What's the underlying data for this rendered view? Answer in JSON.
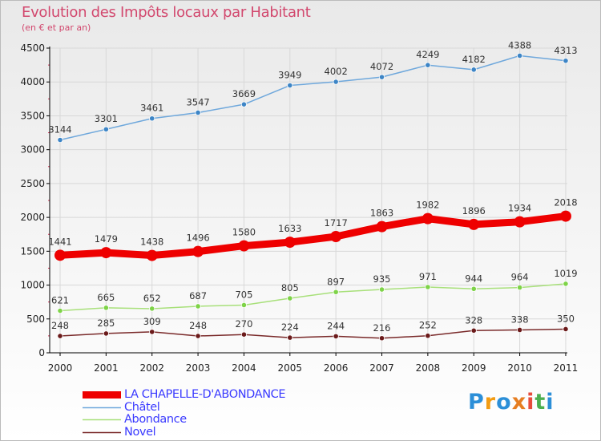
{
  "header": {
    "title": "Evolution des Impôts locaux par Habitant",
    "subtitle": "(en € et par an)"
  },
  "colors": {
    "title": "#d2486e",
    "legend_text": "#3a3aff",
    "axis": "#000000",
    "grid": "#d8d8d8",
    "tick_minor": "#cc3355"
  },
  "logo": {
    "letters": [
      "P",
      "r",
      "o",
      "x",
      "i",
      "t",
      "i"
    ],
    "colors": [
      "#2c8fd8",
      "#f39c12",
      "#2c8fd8",
      "#e67e22",
      "#e74c3c",
      "#4caf50",
      "#2c8fd8"
    ]
  },
  "chart_data": {
    "type": "line",
    "title": "Evolution des Impôts locaux par Habitant",
    "subtitle": "(en € et par an)",
    "x": [
      "2000",
      "2001",
      "2002",
      "2003",
      "2004",
      "2005",
      "2006",
      "2007",
      "2008",
      "2009",
      "2010",
      "2011"
    ],
    "ylim": [
      0,
      4500
    ],
    "yticks": [
      0,
      500,
      1000,
      1500,
      2000,
      2500,
      3000,
      3500,
      4000,
      4500
    ],
    "grid": true,
    "legend_position": "bottom-left",
    "series": [
      {
        "name": "LA CHAPELLE-D'ABONDANCE",
        "color": "#ee0000",
        "marker_color": "#ee0000",
        "emphasis": true,
        "values": [
          1441,
          1479,
          1438,
          1496,
          1580,
          1633,
          1717,
          1863,
          1982,
          1896,
          1934,
          2018
        ]
      },
      {
        "name": "Châtel",
        "color": "#6fa8dc",
        "marker_color": "#3d85c6",
        "emphasis": false,
        "values": [
          3144,
          3301,
          3461,
          3547,
          3669,
          3949,
          4002,
          4072,
          4249,
          4182,
          4388,
          4313
        ]
      },
      {
        "name": "Abondance",
        "color": "#a8e07a",
        "marker_color": "#7ed348",
        "emphasis": false,
        "values": [
          621,
          665,
          652,
          687,
          705,
          805,
          897,
          935,
          971,
          944,
          964,
          1019
        ]
      },
      {
        "name": "Novel",
        "color": "#7a2a2a",
        "marker_color": "#6b1a1a",
        "emphasis": false,
        "values": [
          248,
          285,
          309,
          248,
          270,
          224,
          244,
          216,
          252,
          328,
          338,
          350
        ]
      }
    ]
  }
}
